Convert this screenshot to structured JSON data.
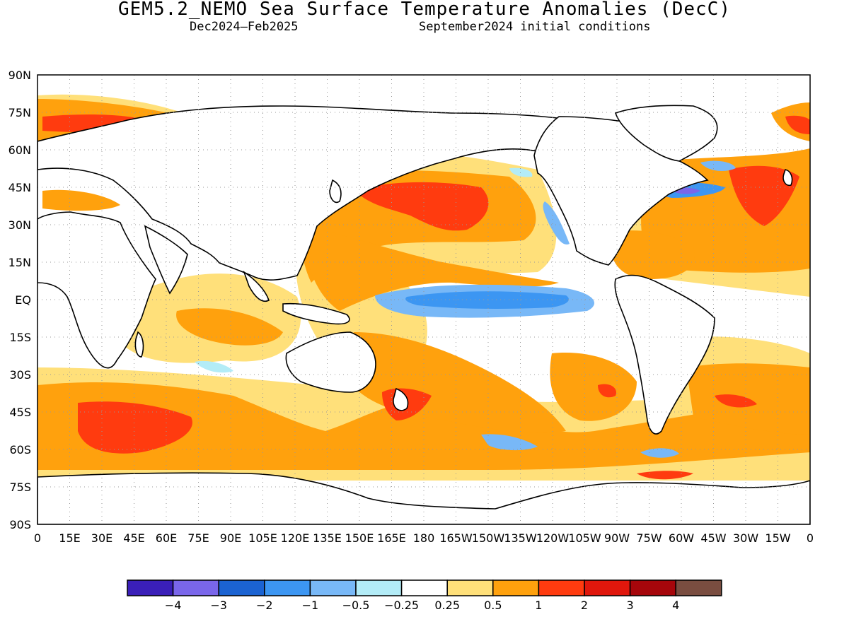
{
  "title": "GEM5.2_NEMO Sea Surface Temperature Anomalies (DecC)",
  "period": "Dec2024—Feb2025",
  "initial_conditions": "September2024 initial conditions",
  "latitude_labels": [
    "90N",
    "75N",
    "60N",
    "45N",
    "30N",
    "15N",
    "EQ",
    "15S",
    "30S",
    "45S",
    "60S",
    "75S",
    "90S"
  ],
  "longitude_labels": [
    "0",
    "15E",
    "30E",
    "45E",
    "60E",
    "75E",
    "90E",
    "105E",
    "120E",
    "135E",
    "150E",
    "165E",
    "180",
    "165W",
    "150W",
    "135W",
    "120W",
    "105W",
    "90W",
    "75W",
    "60W",
    "45W",
    "30W",
    "15W",
    "0"
  ],
  "colorbar": {
    "colors": [
      "#3a1fb8",
      "#7a66ea",
      "#1b63d2",
      "#3c96f2",
      "#78b8f7",
      "#b3ecf7",
      "#ffffff",
      "#ffe07a",
      "#ffa10d",
      "#ff3b0f",
      "#e0170c",
      "#a6060b",
      "#7a4d40"
    ],
    "labels": [
      "−4",
      "−3",
      "−2",
      "−1",
      "−0.5",
      "−0.25",
      "0.25",
      "0.5",
      "1",
      "2",
      "3",
      "4"
    ]
  },
  "map_features": {
    "anomaly_patches": [
      {
        "name": "equatorial-pacific-cold-tongue",
        "color": "#78b8f7"
      },
      {
        "name": "equatorial-pacific-cold-core",
        "color": "#3c96f2"
      },
      {
        "name": "north-pacific-warm",
        "color": "#ffa10d"
      },
      {
        "name": "north-pacific-hot",
        "color": "#ff3b0f"
      },
      {
        "name": "gulf-stream-cold",
        "color": "#3c96f2"
      },
      {
        "name": "north-atlantic-warm",
        "color": "#ffa10d"
      },
      {
        "name": "southern-ocean-warm",
        "color": "#ffa10d"
      },
      {
        "name": "south-indian-hot",
        "color": "#ff3b0f"
      }
    ]
  }
}
